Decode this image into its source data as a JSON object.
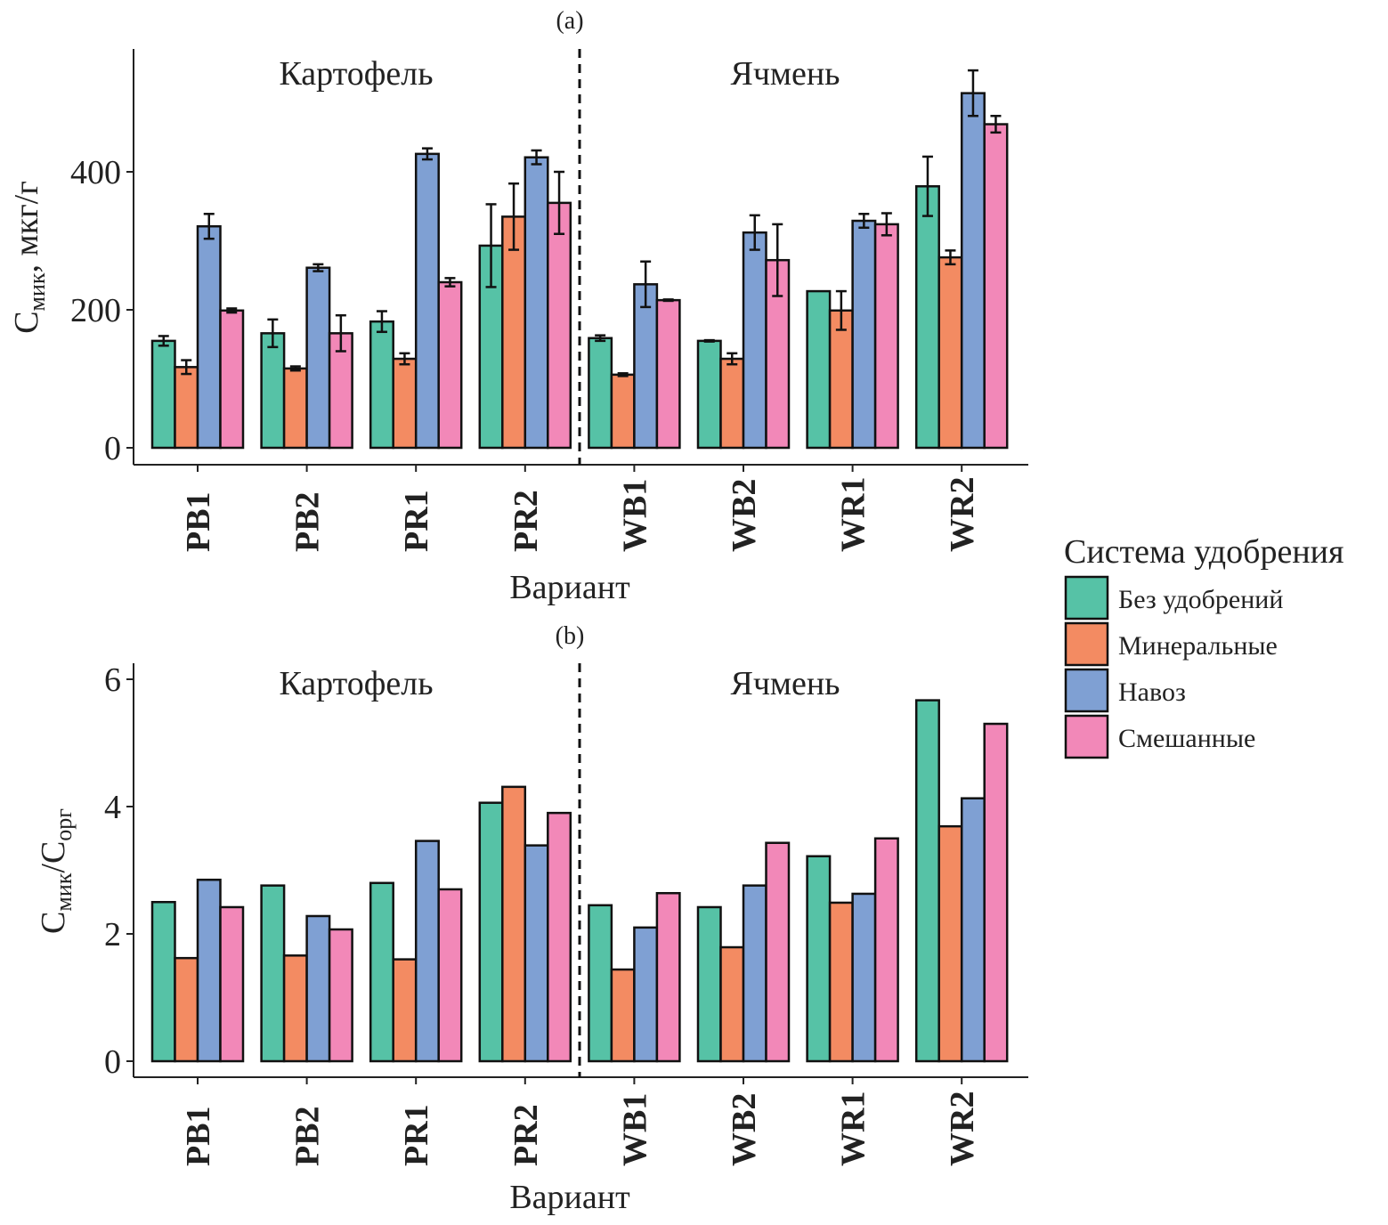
{
  "legend": {
    "title": "Система удобрения",
    "placement": "right",
    "items": [
      {
        "label": "Без удобрений",
        "color": "#56c2a6"
      },
      {
        "label": "Минеральные",
        "color": "#f38b62"
      },
      {
        "label": "Навоз",
        "color": "#7fa0d3"
      },
      {
        "label": "Смешанные",
        "color": "#f288b8"
      }
    ]
  },
  "chart_data": [
    {
      "panel_label": "(a)",
      "type": "bar",
      "title": "",
      "xlabel": "Вариант",
      "ylabel_main": "C",
      "ylabel_sub": "мик",
      "ylabel_rest": ", мкг/г",
      "ylim": [
        0,
        560
      ],
      "yticks": [
        0,
        200,
        400
      ],
      "grid": false,
      "group_labels": [
        {
          "text": "Картофель",
          "position": "left-top"
        },
        {
          "text": "Ячмень",
          "position": "right-top"
        }
      ],
      "divider_after_category": "PR2",
      "categories": [
        "PB1",
        "PB2",
        "PR1",
        "PR2",
        "WB1",
        "WB2",
        "WR1",
        "WR2"
      ],
      "series": [
        {
          "name": "Без удобрений",
          "values": [
            155,
            166,
            183,
            293,
            159,
            155,
            227,
            379
          ],
          "errors": [
            7,
            20,
            15,
            60,
            4,
            1,
            0,
            43
          ]
        },
        {
          "name": "Минеральные",
          "values": [
            117,
            115,
            129,
            335,
            106,
            129,
            199,
            276
          ],
          "errors": [
            10,
            3,
            8,
            48,
            2,
            8,
            28,
            10
          ]
        },
        {
          "name": "Навоз",
          "values": [
            321,
            261,
            426,
            421,
            237,
            312,
            329,
            514
          ],
          "errors": [
            18,
            5,
            8,
            10,
            33,
            25,
            10,
            33
          ]
        },
        {
          "name": "Смешанные",
          "values": [
            199,
            166,
            240,
            355,
            214,
            272,
            324,
            469
          ],
          "errors": [
            3,
            26,
            6,
            45,
            1,
            52,
            16,
            12
          ]
        }
      ]
    },
    {
      "panel_label": "(b)",
      "type": "bar",
      "title": "",
      "xlabel": "Вариант",
      "ylabel_main": "C",
      "ylabel_sub": "мик",
      "ylabel_rest": "/C",
      "ylabel_sub2": "орг",
      "ylim": [
        0,
        6.3
      ],
      "yticks": [
        0,
        2,
        4,
        6
      ],
      "grid": false,
      "group_labels": [
        {
          "text": "Картофель",
          "position": "left-top"
        },
        {
          "text": "Ячмень",
          "position": "right-top"
        }
      ],
      "divider_after_category": "PR2",
      "categories": [
        "PB1",
        "PB2",
        "PR1",
        "PR2",
        "WB1",
        "WB2",
        "WR1",
        "WR2"
      ],
      "series": [
        {
          "name": "Без удобрений",
          "values": [
            2.5,
            2.76,
            2.8,
            4.06,
            2.45,
            2.42,
            3.22,
            5.67
          ]
        },
        {
          "name": "Минеральные",
          "values": [
            1.62,
            1.66,
            1.6,
            4.31,
            1.44,
            1.79,
            2.49,
            3.69
          ]
        },
        {
          "name": "Навоз",
          "values": [
            2.85,
            2.28,
            3.46,
            3.39,
            2.1,
            2.76,
            2.63,
            4.13
          ]
        },
        {
          "name": "Смешанные",
          "values": [
            2.42,
            2.07,
            2.7,
            3.9,
            2.64,
            3.43,
            3.5,
            5.3
          ]
        }
      ]
    }
  ]
}
